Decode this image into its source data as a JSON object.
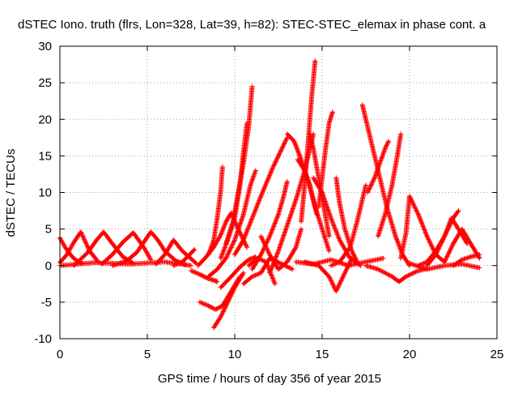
{
  "chart_data": {
    "type": "scatter",
    "title": "dSTEC Iono. truth (flrs, Lon=328, Lat=39, h=82): STEC-STEC_elemax in phase cont. a",
    "xlabel": "GPS time / hours of day 356 of year 2015",
    "ylabel": "dSTEC  / TECUs",
    "xlim": [
      0,
      25
    ],
    "ylim": [
      -10,
      30
    ],
    "xticks": [
      "0",
      "5",
      "10",
      "15",
      "20",
      "25"
    ],
    "yticks": [
      "-10",
      "-5",
      "0",
      "5",
      "10",
      "15",
      "20",
      "25",
      "30"
    ],
    "grid": true,
    "marker": "+",
    "color": "#ff0000",
    "series": [
      {
        "x": [
          0.0,
          0.3,
          0.7,
          1.0,
          1.3
        ],
        "y": [
          3.8,
          2.5,
          1.2,
          0.6,
          0.3
        ]
      },
      {
        "x": [
          0.0,
          0.4,
          0.8,
          1.2,
          1.7,
          2.2
        ],
        "y": [
          0.4,
          1.5,
          3.2,
          4.6,
          2.0,
          0.5
        ]
      },
      {
        "x": [
          0.8,
          1.6,
          2.1,
          2.5,
          3.0,
          3.6,
          4.2
        ],
        "y": [
          0.0,
          1.8,
          3.5,
          4.6,
          3.0,
          1.2,
          0.3
        ]
      },
      {
        "x": [
          2.4,
          3.0,
          3.6,
          4.2,
          4.8,
          5.2
        ],
        "y": [
          0.2,
          1.5,
          3.2,
          4.5,
          2.5,
          0.8
        ]
      },
      {
        "x": [
          3.0,
          3.8,
          4.4,
          4.8,
          5.2,
          5.6,
          6.0,
          6.6,
          7.2
        ],
        "y": [
          0.0,
          0.6,
          1.8,
          3.2,
          4.6,
          3.5,
          2.0,
          0.7,
          0.1
        ]
      },
      {
        "x": [
          5.5,
          6.0,
          6.5,
          7.0,
          7.8
        ],
        "y": [
          0.2,
          1.5,
          3.5,
          2.0,
          0.3
        ]
      },
      {
        "x": [
          0.0,
          2.0,
          4.0,
          6.0,
          7.5
        ],
        "y": [
          0.0,
          0.4,
          0.2,
          0.5,
          0.0
        ]
      },
      {
        "x": [
          6.5,
          7.0,
          7.3,
          7.7
        ],
        "y": [
          0.0,
          0.5,
          1.2,
          2.2
        ]
      },
      {
        "x": [
          7.5,
          8.0,
          8.5,
          8.8,
          9.0
        ],
        "y": [
          -0.7,
          -1.2,
          -1.8,
          -2.0,
          -2.2
        ]
      },
      {
        "x": [
          7.9,
          8.3,
          8.8,
          9.2,
          9.5,
          9.8,
          10.2,
          10.7
        ],
        "y": [
          0.0,
          1.0,
          2.5,
          4.2,
          6.0,
          7.2,
          5.0,
          2.5
        ]
      },
      {
        "x": [
          8.5,
          8.8,
          9.0,
          9.2,
          9.3
        ],
        "y": [
          1.5,
          3.5,
          6.5,
          10.2,
          13.5
        ]
      },
      {
        "x": [
          8.0,
          8.5,
          8.9,
          9.3,
          9.8,
          10.3
        ],
        "y": [
          -5.0,
          -5.5,
          -6.0,
          -5.5,
          -3.5,
          -1.5
        ]
      },
      {
        "x": [
          8.8,
          9.2,
          9.6,
          10.0,
          10.5
        ],
        "y": [
          -8.5,
          -7.0,
          -5.0,
          -3.0,
          -1.0
        ]
      },
      {
        "x": [
          8.5,
          9.0,
          9.5,
          10.0,
          10.5,
          10.9,
          11.2
        ],
        "y": [
          -1.5,
          -0.5,
          1.0,
          3.5,
          7.0,
          11.0,
          13.0
        ]
      },
      {
        "x": [
          9.2,
          9.6,
          10.0,
          10.3,
          10.5,
          10.7
        ],
        "y": [
          1.0,
          3.5,
          6.5,
          11.0,
          15.5,
          19.5
        ]
      },
      {
        "x": [
          9.5,
          9.9,
          10.2,
          10.5,
          10.8,
          11.0
        ],
        "y": [
          3.0,
          6.0,
          10.0,
          14.0,
          19.0,
          24.5
        ]
      },
      {
        "x": [
          9.2,
          9.8,
          10.3,
          10.8,
          11.2
        ],
        "y": [
          -3.0,
          -1.5,
          -0.2,
          0.8,
          1.2
        ]
      },
      {
        "x": [
          10.0,
          10.5,
          11.0,
          11.5,
          12.2,
          12.6,
          13.0
        ],
        "y": [
          1.5,
          3.5,
          6.5,
          9.5,
          13.5,
          15.5,
          17.5
        ]
      },
      {
        "x": [
          11.0,
          11.5,
          12.0,
          12.5,
          12.8,
          13.0
        ],
        "y": [
          -0.5,
          1.5,
          4.0,
          7.0,
          9.5,
          11.5
        ]
      },
      {
        "x": [
          10.5,
          11.0,
          11.5,
          12.0,
          12.7,
          13.3
        ],
        "y": [
          -2.5,
          -1.5,
          -1.0,
          1.0,
          0.2,
          -0.5
        ]
      },
      {
        "x": [
          10.8,
          11.3,
          11.8,
          12.3
        ],
        "y": [
          0.0,
          1.0,
          0.5,
          -2.5
        ]
      },
      {
        "x": [
          11.5,
          12.0,
          12.5,
          13.0,
          13.5,
          13.8
        ],
        "y": [
          4.0,
          1.5,
          -0.5,
          0.5,
          2.5,
          5.0
        ]
      },
      {
        "x": [
          12.0,
          12.5,
          13.0,
          13.5,
          14.0,
          14.5
        ],
        "y": [
          -1.0,
          2.0,
          5.5,
          9.0,
          13.0,
          18.0
        ]
      },
      {
        "x": [
          13.0,
          13.4,
          13.8,
          14.2,
          14.6,
          15.0,
          15.4
        ],
        "y": [
          18.0,
          17.0,
          14.5,
          11.5,
          8.0,
          5.0,
          2.0
        ]
      },
      {
        "x": [
          13.6,
          14.0,
          14.3,
          14.5,
          14.7
        ],
        "y": [
          14.5,
          13.0,
          11.0,
          9.0,
          7.0
        ]
      },
      {
        "x": [
          13.8,
          14.0,
          14.2,
          14.4,
          14.6
        ],
        "y": [
          6.0,
          11.0,
          17.0,
          23.0,
          28.0
        ]
      },
      {
        "x": [
          14.3,
          14.5,
          14.8,
          15.1,
          15.4
        ],
        "y": [
          18.0,
          16.0,
          12.0,
          8.0,
          4.0
        ]
      },
      {
        "x": [
          14.8,
          15.0,
          15.2,
          15.4,
          15.6
        ],
        "y": [
          8.0,
          12.0,
          16.0,
          19.5,
          21.0
        ]
      },
      {
        "x": [
          14.5,
          15.0,
          15.5,
          16.0,
          16.6,
          17.2
        ],
        "y": [
          12.0,
          10.0,
          6.5,
          3.5,
          1.0,
          0.0
        ]
      },
      {
        "x": [
          14.0,
          14.8,
          15.4,
          15.8,
          16.2,
          16.7
        ],
        "y": [
          0.5,
          0.0,
          -1.5,
          -3.5,
          -1.5,
          1.0
        ]
      },
      {
        "x": [
          15.5,
          16.0,
          16.6,
          17.0,
          17.5
        ],
        "y": [
          0.0,
          0.5,
          2.5,
          6.0,
          11.0
        ]
      },
      {
        "x": [
          15.8,
          16.0,
          16.3,
          16.7,
          17.0
        ],
        "y": [
          12.0,
          8.5,
          5.0,
          2.0,
          0.5
        ]
      },
      {
        "x": [
          13.5,
          14.5,
          15.5,
          16.5,
          17.5,
          18.5
        ],
        "y": [
          0.5,
          0.2,
          0.8,
          0.0,
          0.5,
          1.0
        ]
      },
      {
        "x": [
          17.3,
          17.5,
          17.8,
          18.2,
          18.7,
          19.2,
          19.6,
          20.0
        ],
        "y": [
          22.0,
          20.0,
          17.0,
          13.0,
          8.0,
          4.0,
          1.5,
          0.0
        ]
      },
      {
        "x": [
          17.6,
          18.0,
          18.3,
          18.6,
          18.8
        ],
        "y": [
          10.0,
          12.0,
          14.0,
          16.0,
          17.0
        ]
      },
      {
        "x": [
          18.2,
          18.6,
          19.0,
          19.3,
          19.5
        ],
        "y": [
          4.0,
          7.0,
          11.0,
          15.0,
          18.0
        ]
      },
      {
        "x": [
          17.5,
          18.2,
          19.0,
          19.4,
          19.8,
          20.4,
          21.0
        ],
        "y": [
          0.0,
          -0.5,
          -1.5,
          -2.2,
          -1.5,
          -0.8,
          -0.4
        ]
      },
      {
        "x": [
          19.5,
          19.8,
          20.0,
          20.5,
          21.0,
          21.5,
          22.0
        ],
        "y": [
          1.0,
          4.5,
          9.5,
          7.0,
          4.0,
          1.5,
          0.5
        ]
      },
      {
        "x": [
          20.5,
          21.0,
          21.5,
          22.0,
          22.4,
          22.8,
          23.3
        ],
        "y": [
          0.0,
          0.5,
          2.0,
          4.0,
          6.5,
          5.0,
          3.0
        ]
      },
      {
        "x": [
          21.0,
          21.5,
          22.0,
          22.5,
          22.8
        ],
        "y": [
          0.0,
          1.5,
          4.0,
          6.5,
          7.5
        ]
      },
      {
        "x": [
          22.0,
          22.5,
          23.0,
          23.5,
          24.0
        ],
        "y": [
          0.5,
          3.0,
          5.0,
          3.0,
          1.0
        ]
      },
      {
        "x": [
          22.5,
          23.0,
          23.5,
          24.0
        ],
        "y": [
          0.0,
          0.8,
          1.2,
          1.5
        ]
      },
      {
        "x": [
          20.0,
          21.0,
          22.0,
          23.0,
          24.0
        ],
        "y": [
          0.3,
          -0.5,
          0.0,
          0.2,
          -0.3
        ]
      }
    ]
  }
}
